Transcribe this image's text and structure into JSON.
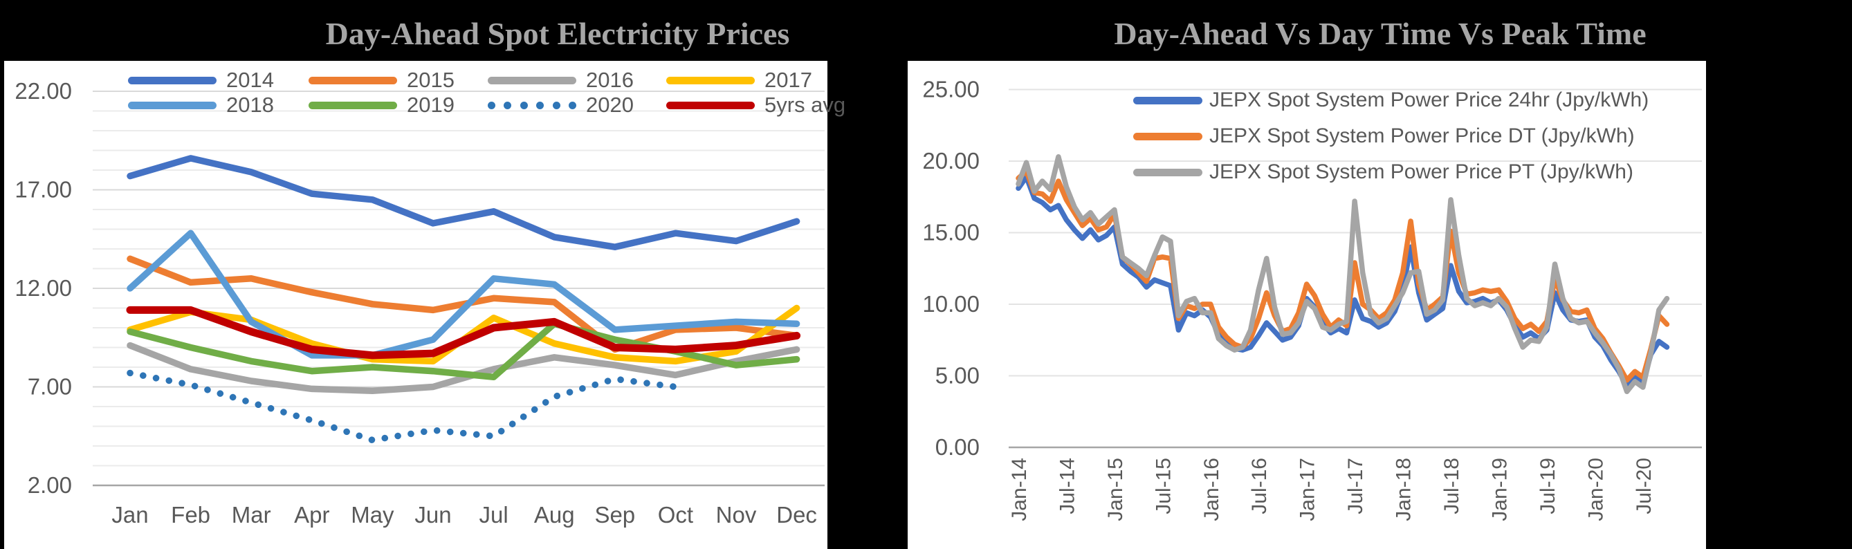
{
  "left_chart_title": "Day-Ahead Spot Electricity Prices",
  "right_chart_title": "Day-Ahead Vs Day Time Vs Peak Time",
  "colors": {
    "background": "#000000",
    "panel": "#ffffff",
    "axis_text": "#595959",
    "title_text": "#a6a6a6",
    "gridline_minor": "#ebebeb",
    "gridline_major": "#d9d9d9",
    "axis_line": "#a6a6a6"
  },
  "chart_data": [
    {
      "type": "line",
      "title": "Day-Ahead Spot Electricity Prices",
      "unit": "Jpy/kWh",
      "categories": [
        "Jan",
        "Feb",
        "Mar",
        "Apr",
        "May",
        "Jun",
        "Jul",
        "Aug",
        "Sep",
        "Oct",
        "Nov",
        "Dec"
      ],
      "ylim": [
        2,
        22
      ],
      "y_ticks": [
        22,
        17,
        12,
        7,
        2
      ],
      "y_tick_labels": [
        "22.00",
        "17.00",
        "12.00",
        "7.00",
        "2.00"
      ],
      "grid": "horizontal minor every 1 unit, labeled every 5",
      "legend_position": "top inside, two rows",
      "series": [
        {
          "name": "2014",
          "color": "#4472C4",
          "style": "solid",
          "values": [
            17.7,
            18.6,
            17.9,
            16.8,
            16.5,
            15.3,
            15.9,
            14.6,
            14.1,
            14.8,
            14.4,
            15.4
          ]
        },
        {
          "name": "2015",
          "color": "#ED7D31",
          "style": "solid",
          "values": [
            13.5,
            12.3,
            12.5,
            11.8,
            11.2,
            10.9,
            11.5,
            11.3,
            8.9,
            9.9,
            10.0,
            9.6
          ]
        },
        {
          "name": "2016",
          "color": "#A5A5A5",
          "style": "solid",
          "values": [
            9.1,
            7.9,
            7.3,
            6.9,
            6.8,
            7.0,
            7.9,
            8.5,
            8.1,
            7.6,
            8.3,
            8.9
          ]
        },
        {
          "name": "2017",
          "color": "#FFC000",
          "style": "solid",
          "values": [
            9.9,
            10.8,
            10.4,
            9.2,
            8.4,
            8.3,
            10.5,
            9.2,
            8.5,
            8.3,
            8.8,
            11.0
          ]
        },
        {
          "name": "2018",
          "color": "#5B9BD5",
          "style": "solid",
          "values": [
            12.0,
            14.8,
            10.3,
            8.6,
            8.6,
            9.4,
            12.5,
            12.2,
            9.9,
            10.1,
            10.3,
            10.2
          ]
        },
        {
          "name": "2019",
          "color": "#70AD47",
          "style": "solid",
          "values": [
            9.8,
            9.0,
            8.3,
            7.8,
            8.0,
            7.8,
            7.5,
            10.2,
            9.4,
            8.8,
            8.1,
            8.4
          ]
        },
        {
          "name": "2020",
          "color": "#2E75B6",
          "style": "dotted",
          "values": [
            7.7,
            7.1,
            6.2,
            5.3,
            4.3,
            4.8,
            4.5,
            6.5,
            7.4,
            7.0
          ]
        },
        {
          "name": "5yrs avg",
          "color": "#C00000",
          "style": "solid",
          "values": [
            10.9,
            10.9,
            9.8,
            8.9,
            8.6,
            8.7,
            10.0,
            10.3,
            9.0,
            8.9,
            9.1,
            9.6
          ]
        }
      ]
    },
    {
      "type": "line",
      "title": "Day-Ahead Vs Day Time Vs Peak Time",
      "unit": "Jpy/kWh",
      "x_range": "monthly, Jan-2014 to Oct-2020",
      "x_tick_labels": [
        "Jan-14",
        "Jul-14",
        "Jan-15",
        "Jul-15",
        "Jan-16",
        "Jul-16",
        "Jan-17",
        "Jul-17",
        "Jan-18",
        "Jul-18",
        "Jan-19",
        "Jul-19",
        "Jan-20",
        "Jul-20"
      ],
      "x_tick_every_months": 6,
      "ylim": [
        0,
        25
      ],
      "y_ticks": [
        25,
        20,
        15,
        10,
        5,
        0
      ],
      "y_tick_labels": [
        "25.00",
        "20.00",
        "15.00",
        "10.00",
        "5.00",
        "0.00"
      ],
      "grid": "horizontal every 5 units",
      "legend_position": "top inside, three rows",
      "series": [
        {
          "name": "JEPX Spot System Power Price 24hr (Jpy/kWh)",
          "color": "#4472C4",
          "style": "solid",
          "values": [
            18.1,
            18.9,
            17.4,
            17.1,
            16.6,
            16.9,
            15.9,
            15.2,
            14.6,
            15.2,
            14.5,
            14.8,
            15.4,
            12.8,
            12.3,
            11.9,
            11.2,
            11.7,
            11.5,
            11.3,
            8.2,
            9.4,
            9.2,
            9.6,
            9.1,
            7.9,
            7.3,
            6.9,
            6.8,
            7.0,
            7.8,
            8.7,
            8.1,
            7.5,
            7.7,
            8.5,
            10.4,
            9.8,
            8.7,
            8.0,
            8.3,
            8.0,
            10.3,
            9.0,
            8.8,
            8.4,
            8.7,
            9.5,
            11.0,
            14.0,
            10.8,
            8.9,
            9.3,
            9.7,
            12.7,
            10.9,
            10.1,
            10.2,
            10.4,
            10.1,
            10.3,
            9.6,
            8.5,
            7.7,
            8.0,
            7.6,
            8.2,
            10.8,
            9.6,
            8.9,
            8.8,
            8.9,
            7.7,
            7.1,
            6.1,
            5.3,
            4.3,
            4.9,
            4.5,
            6.5,
            7.4,
            7.0
          ]
        },
        {
          "name": "JEPX Spot System Power Price DT (Jpy/kWh)",
          "color": "#ED7D31",
          "style": "solid",
          "values": [
            18.8,
            19.3,
            17.8,
            17.7,
            17.2,
            18.6,
            17.3,
            16.4,
            15.5,
            16.0,
            15.2,
            15.4,
            16.3,
            13.3,
            12.8,
            12.2,
            11.6,
            13.2,
            13.3,
            13.2,
            9.0,
            9.9,
            9.7,
            10.0,
            10.0,
            8.4,
            7.7,
            7.2,
            7.0,
            7.6,
            9.0,
            10.8,
            9.2,
            8.1,
            8.3,
            9.4,
            11.4,
            10.6,
            9.3,
            8.4,
            8.9,
            8.5,
            12.9,
            10.0,
            9.6,
            9.0,
            9.4,
            10.3,
            12.2,
            15.8,
            11.4,
            9.6,
            10.0,
            10.5,
            15.1,
            12.2,
            10.7,
            10.8,
            11.0,
            10.9,
            11.0,
            10.2,
            9.0,
            8.3,
            8.6,
            8.1,
            8.8,
            11.8,
            10.3,
            9.5,
            9.4,
            9.6,
            8.3,
            7.6,
            6.6,
            5.7,
            4.7,
            5.3,
            4.9,
            6.9,
            9.2,
            8.6
          ]
        },
        {
          "name": "JEPX Spot System Power Price PT (Jpy/kWh)",
          "color": "#A5A5A5",
          "style": "solid",
          "values": [
            18.4,
            19.9,
            17.9,
            18.6,
            18.0,
            20.3,
            18.2,
            16.8,
            15.9,
            16.4,
            15.6,
            16.1,
            16.6,
            13.3,
            12.9,
            12.5,
            12.0,
            13.4,
            14.7,
            14.4,
            9.2,
            10.2,
            10.4,
            9.4,
            9.4,
            7.6,
            7.1,
            6.8,
            7.0,
            8.2,
            11.0,
            13.2,
            9.8,
            7.9,
            8.0,
            8.7,
            10.2,
            9.7,
            8.4,
            8.2,
            8.6,
            8.8,
            17.2,
            12.2,
            9.3,
            8.7,
            9.0,
            9.9,
            10.8,
            12.2,
            12.3,
            9.3,
            9.6,
            10.3,
            17.3,
            13.4,
            10.4,
            9.9,
            10.1,
            9.9,
            10.4,
            9.8,
            8.3,
            7.0,
            7.5,
            7.4,
            8.4,
            12.8,
            10.4,
            9.0,
            8.7,
            8.8,
            8.0,
            7.3,
            6.5,
            5.5,
            3.9,
            4.6,
            4.2,
            6.6,
            9.6,
            10.4
          ]
        }
      ]
    }
  ]
}
